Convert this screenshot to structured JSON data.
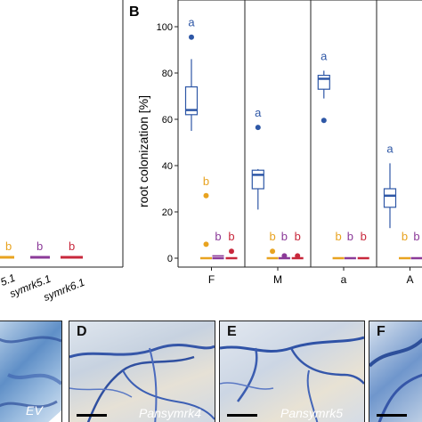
{
  "panelA": {
    "colors": {
      "orange": "#e8a320",
      "purple": "#8b3a98",
      "crimson": "#c8283c"
    },
    "letters": [
      "b",
      "b",
      "b"
    ],
    "xlabels": [
      "5.1",
      "symrk5.1",
      "symrk6.1"
    ]
  },
  "panelB": {
    "label": "B",
    "ylabel": "root colonization [%]",
    "yticks": [
      "0",
      "20",
      "40",
      "60",
      "80",
      "100"
    ],
    "facets": [
      "F",
      "M",
      "a",
      "A"
    ],
    "colors": {
      "blue": "#2e57a6",
      "orange": "#e8a320",
      "purple": "#8b3a98",
      "crimson": "#c8283c"
    }
  },
  "chart_data": {
    "type": "box",
    "ylabel": "root colonization [%]",
    "ylim": [
      0,
      105
    ],
    "facets": [
      {
        "name": "F",
        "groups": [
          {
            "color": "blue",
            "min": 55,
            "q1": 62,
            "median": 64,
            "q3": 74,
            "max": 86,
            "outliers": [
              95.5
            ],
            "letter": "a"
          },
          {
            "color": "orange",
            "min": 0,
            "q1": 0,
            "median": 0,
            "q3": 0.5,
            "max": 0.5,
            "outliers": [
              27,
              6
            ],
            "letter": "b"
          },
          {
            "color": "purple",
            "min": 0,
            "q1": 0,
            "median": 0.3,
            "q3": 1,
            "max": 1.5,
            "outliers": [],
            "letter": "b"
          },
          {
            "color": "crimson",
            "min": 0,
            "q1": 0,
            "median": 0,
            "q3": 0.5,
            "max": 0.5,
            "outliers": [
              3
            ],
            "letter": "b"
          }
        ]
      },
      {
        "name": "M",
        "groups": [
          {
            "color": "blue",
            "min": 21,
            "q1": 30,
            "median": 36,
            "q3": 38,
            "max": 38.5,
            "outliers": [
              56.5
            ],
            "letter": "a"
          },
          {
            "color": "orange",
            "min": 0,
            "q1": 0,
            "median": 0,
            "q3": 0.5,
            "max": 0.5,
            "outliers": [
              3
            ],
            "letter": "b"
          },
          {
            "color": "purple",
            "min": 0,
            "q1": 0,
            "median": 0,
            "q3": 0.5,
            "max": 0.5,
            "outliers": [
              1
            ],
            "letter": "b"
          },
          {
            "color": "crimson",
            "min": 0,
            "q1": 0,
            "median": 0,
            "q3": 0.5,
            "max": 0.5,
            "outliers": [
              1
            ],
            "letter": "b"
          }
        ]
      },
      {
        "name": "a",
        "groups": [
          {
            "color": "blue",
            "min": 69,
            "q1": 73,
            "median": 77.5,
            "q3": 79,
            "max": 81,
            "outliers": [
              59.5
            ],
            "letter": "a"
          },
          {
            "color": "orange",
            "min": 0,
            "q1": 0,
            "median": 0,
            "q3": 0,
            "max": 0,
            "outliers": [],
            "letter": "b"
          },
          {
            "color": "purple",
            "min": 0,
            "q1": 0,
            "median": 0,
            "q3": 0,
            "max": 0,
            "outliers": [],
            "letter": "b"
          },
          {
            "color": "crimson",
            "min": 0,
            "q1": 0,
            "median": 0,
            "q3": 0,
            "max": 0,
            "outliers": [],
            "letter": "b"
          }
        ]
      },
      {
        "name": "A",
        "groups": [
          {
            "color": "blue",
            "min": 13,
            "q1": 22,
            "median": 27,
            "q3": 30,
            "max": 41,
            "outliers": [],
            "letter": "a"
          },
          {
            "color": "orange",
            "min": 0,
            "q1": 0,
            "median": 0,
            "q3": 0,
            "max": 0,
            "outliers": [],
            "letter": "b"
          },
          {
            "color": "purple",
            "min": 0,
            "q1": 0,
            "median": 0,
            "q3": 0,
            "max": 0,
            "outliers": [],
            "letter": "b"
          }
        ]
      }
    ]
  },
  "micrographs": [
    {
      "label": "",
      "caption": "EV"
    },
    {
      "label": "D",
      "caption": "Pansymrk4"
    },
    {
      "label": "E",
      "caption": "Pansymrk5"
    },
    {
      "label": "F",
      "caption": ""
    }
  ]
}
